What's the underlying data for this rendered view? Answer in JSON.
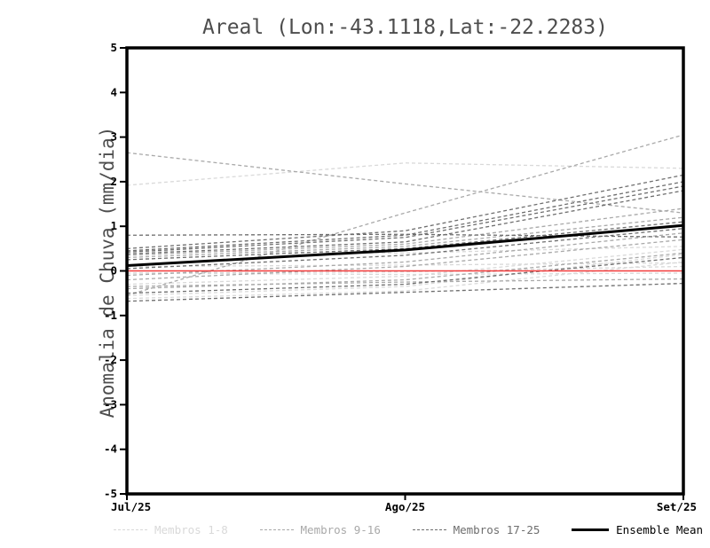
{
  "chart_data": {
    "type": "line",
    "title": "Areal (Lon:-43.1118,Lat:-22.2283)",
    "xlabel": "",
    "ylabel": "Anomalia de Chuva (mm/dia)",
    "x_categories": [
      "Jul/25",
      "Ago/25",
      "Set/25"
    ],
    "ylim": [
      -5,
      5
    ],
    "yticks": [
      -5,
      -4,
      -3,
      -2,
      -1,
      0,
      1,
      2,
      3,
      4,
      5
    ],
    "grid": false,
    "legend_position": "bottom",
    "series": [
      {
        "name": "Membros 1-8",
        "color": "#d9d9d9",
        "style": "dashed",
        "members": [
          [
            1.92,
            2.42,
            2.3
          ],
          [
            0.45,
            0.4,
            0.55
          ],
          [
            0.1,
            0.13,
            0.18
          ],
          [
            -0.05,
            -0.02,
            0.1
          ],
          [
            -0.3,
            -0.12,
            0.48
          ],
          [
            -0.55,
            -0.35,
            0.37
          ],
          [
            -0.62,
            -0.45,
            0.2
          ],
          [
            -0.05,
            -0.08,
            -0.05
          ]
        ]
      },
      {
        "name": "Membros 9-16",
        "color": "#a9a9a9",
        "style": "dashed",
        "members": [
          [
            2.65,
            1.95,
            1.3
          ],
          [
            -0.55,
            1.3,
            3.05
          ],
          [
            0.35,
            0.6,
            1.4
          ],
          [
            0.3,
            0.55,
            1.2
          ],
          [
            -0.1,
            0.2,
            0.85
          ],
          [
            -0.2,
            0.1,
            0.7
          ],
          [
            -0.4,
            -0.2,
            0.4
          ],
          [
            -0.35,
            -0.25,
            -0.18
          ]
        ]
      },
      {
        "name": "Membros 17-25",
        "color": "#6e6e6e",
        "style": "dashed",
        "members": [
          [
            0.5,
            0.9,
            2.15
          ],
          [
            0.45,
            0.8,
            2.0
          ],
          [
            0.42,
            0.75,
            1.9
          ],
          [
            0.38,
            0.65,
            1.8
          ],
          [
            0.25,
            0.5,
            1.1
          ],
          [
            0.8,
            0.82,
            0.76
          ],
          [
            0.05,
            0.35,
            0.95
          ],
          [
            -0.5,
            -0.3,
            0.3
          ],
          [
            -0.68,
            -0.48,
            -0.28
          ]
        ]
      },
      {
        "name": "Ensemble Mean",
        "color": "#000000",
        "style": "solid",
        "members": [
          [
            0.12,
            0.47,
            1.02
          ]
        ]
      }
    ],
    "zero_line": {
      "color": "#f23b3b",
      "values": [
        0,
        0,
        0
      ]
    }
  },
  "legend": {
    "items": [
      {
        "label": "Membros 1-8",
        "color": "#d9d9d9",
        "style": "dashed"
      },
      {
        "label": "Membros 9-16",
        "color": "#a9a9a9",
        "style": "dashed"
      },
      {
        "label": "Membros 17-25",
        "color": "#6e6e6e",
        "style": "dashed"
      },
      {
        "label": "Ensemble Mean",
        "color": "#000000",
        "style": "solid"
      }
    ]
  }
}
